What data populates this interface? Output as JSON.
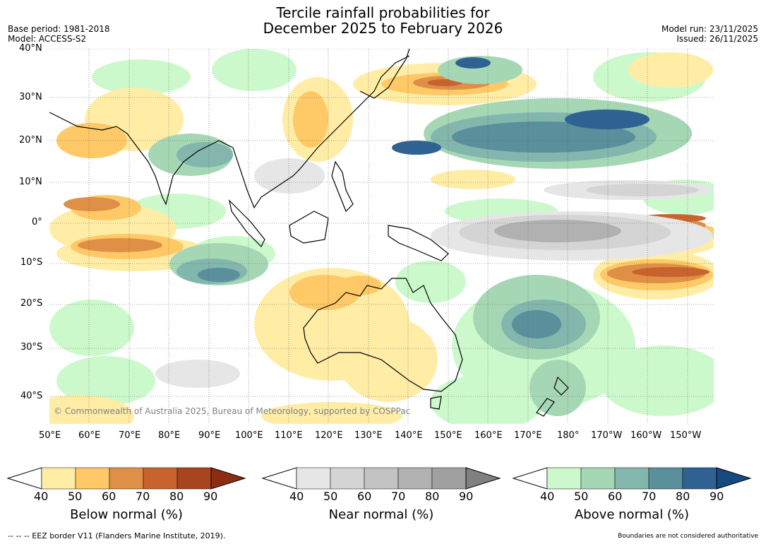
{
  "header": {
    "title_line1": "Tercile rainfall probabilities for",
    "title_line2": "December 2025 to February 2026",
    "base_period": "Base period: 1981-2018",
    "model": "Model: ACCESS-S2",
    "model_run": "Model run: 23/11/2025",
    "issued": "Issued: 26/11/2025"
  },
  "map": {
    "lat_labels": [
      "40°N",
      "30°N",
      "20°N",
      "10°N",
      "0°",
      "10°S",
      "20°S",
      "30°S",
      "40°S"
    ],
    "lon_labels": [
      "50°E",
      "60°E",
      "70°E",
      "80°E",
      "90°E",
      "100°E",
      "110°E",
      "120°E",
      "130°E",
      "140°E",
      "150°E",
      "160°E",
      "170°E",
      "180°",
      "170°W",
      "160°W",
      "150°W"
    ],
    "copyright": "© Commonwealth of Australia 2025, Bureau of Meteorology, supported by COSPPac"
  },
  "colorbars": [
    {
      "title": "Below normal (%)",
      "ticks": [
        "40",
        "50",
        "60",
        "70",
        "80",
        "90"
      ],
      "colors": [
        "#ffeda6",
        "#fec966",
        "#df9046",
        "#c9632e",
        "#a8441f"
      ],
      "extend_color": "#8c2d12"
    },
    {
      "title": "Near normal (%)",
      "ticks": [
        "40",
        "50",
        "60",
        "70",
        "80",
        "90"
      ],
      "colors": [
        "#e6e6e6",
        "#d4d4d4",
        "#c3c3c3",
        "#b1b1b1",
        "#a0a0a0"
      ],
      "extend_color": "#808080"
    },
    {
      "title": "Above normal (%)",
      "ticks": [
        "40",
        "50",
        "60",
        "70",
        "80",
        "90"
      ],
      "colors": [
        "#ccf9cc",
        "#a6d7b5",
        "#83b6ad",
        "#5a8f9c",
        "#2f6193"
      ],
      "extend_color": "#164a80"
    }
  ],
  "footer": {
    "left": "--  --  -- EEZ border V11 (Flanders Marine Institute, 2019).",
    "right": "Boundaries are not considered authoritative"
  }
}
